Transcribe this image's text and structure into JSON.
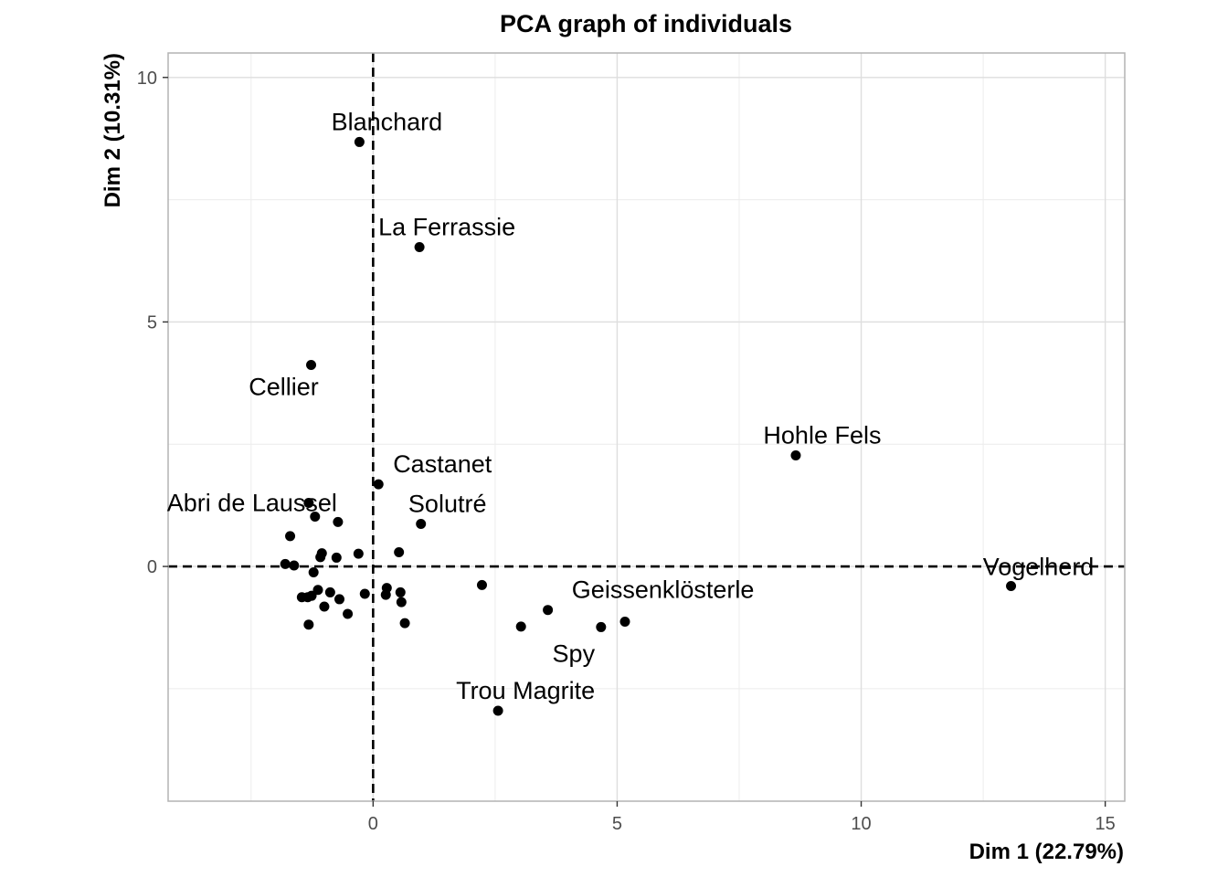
{
  "chart_data": {
    "type": "scatter",
    "title": "PCA graph of individuals",
    "xlabel": "Dim 1 (22.79%)",
    "ylabel": "Dim 2 (10.31%)",
    "xlim": [
      -4.2,
      15.4
    ],
    "ylim": [
      -4.8,
      10.5
    ],
    "x_ticks": [
      0,
      5,
      10,
      15
    ],
    "y_ticks": [
      0,
      5,
      10
    ],
    "grid": true,
    "reference_lines": {
      "x": 0,
      "y": 0,
      "style": "dashed"
    },
    "labeled_points": [
      {
        "label": "Blanchard",
        "x": -0.28,
        "y": 8.68
      },
      {
        "label": "La Ferrassie",
        "x": 0.95,
        "y": 6.53
      },
      {
        "label": "Cellier",
        "x": -1.27,
        "y": 4.12
      },
      {
        "label": "Hohle Fels",
        "x": 8.66,
        "y": 2.27
      },
      {
        "label": "Castanet",
        "x": 0.11,
        "y": 1.68
      },
      {
        "label": "Abri de Laussel",
        "x": -1.32,
        "y": 1.3
      },
      {
        "label": "Solutré",
        "x": 0.98,
        "y": 0.87
      },
      {
        "label": "Vogelherd",
        "x": 13.07,
        "y": -0.4
      },
      {
        "label": "Geissenklösterle",
        "x": 3.58,
        "y": -0.89
      },
      {
        "label": "Spy",
        "x": 4.67,
        "y": -1.24
      },
      {
        "label": "Trou Magrite",
        "x": 2.56,
        "y": -2.95
      }
    ],
    "unlabeled_points": [
      {
        "x": -1.7,
        "y": 0.62
      },
      {
        "x": -1.19,
        "y": 1.02
      },
      {
        "x": -0.72,
        "y": 0.91
      },
      {
        "x": -1.8,
        "y": 0.05
      },
      {
        "x": -1.62,
        "y": 0.02
      },
      {
        "x": -1.08,
        "y": 0.19
      },
      {
        "x": -1.05,
        "y": 0.27
      },
      {
        "x": -0.75,
        "y": 0.18
      },
      {
        "x": -0.3,
        "y": 0.26
      },
      {
        "x": 0.53,
        "y": 0.29
      },
      {
        "x": -1.22,
        "y": -0.12
      },
      {
        "x": -1.46,
        "y": -0.63
      },
      {
        "x": -1.34,
        "y": -0.63
      },
      {
        "x": -1.26,
        "y": -0.6
      },
      {
        "x": -1.13,
        "y": -0.48
      },
      {
        "x": -0.88,
        "y": -0.53
      },
      {
        "x": -0.69,
        "y": -0.67
      },
      {
        "x": -1.0,
        "y": -0.82
      },
      {
        "x": -0.52,
        "y": -0.97
      },
      {
        "x": -0.17,
        "y": -0.56
      },
      {
        "x": 0.28,
        "y": -0.44
      },
      {
        "x": 0.26,
        "y": -0.58
      },
      {
        "x": 0.56,
        "y": -0.53
      },
      {
        "x": 0.58,
        "y": -0.73
      },
      {
        "x": 0.65,
        "y": -1.16
      },
      {
        "x": -1.32,
        "y": -1.19
      },
      {
        "x": 2.23,
        "y": -0.38
      },
      {
        "x": 3.03,
        "y": -1.23
      },
      {
        "x": 5.16,
        "y": -1.13
      }
    ]
  }
}
